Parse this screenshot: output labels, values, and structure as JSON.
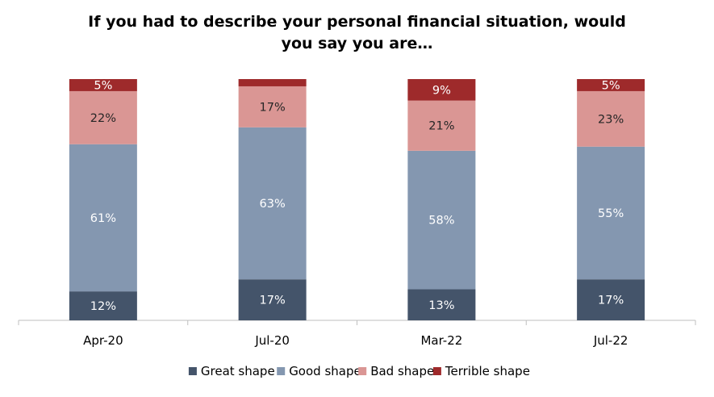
{
  "chart_data": {
    "type": "bar",
    "stacked": true,
    "title": "If you had to describe your personal financial situation, would you say you are…",
    "categories": [
      "Apr-20",
      "Jul-20",
      "Mar-22",
      "Jul-22"
    ],
    "ylim": [
      0,
      100
    ],
    "grid": false,
    "legend_position": "bottom",
    "series": [
      {
        "name": "Great shape",
        "color": "#44546a",
        "values": [
          12,
          17,
          13,
          17
        ],
        "labels": [
          "12%",
          "17%",
          "13%",
          "17%"
        ]
      },
      {
        "name": "Good shape",
        "color": "#8497b0",
        "values": [
          61,
          63,
          58,
          55
        ],
        "labels": [
          "61%",
          "63%",
          "58%",
          "55%"
        ]
      },
      {
        "name": "Bad shape",
        "color": "#da9694",
        "values": [
          22,
          17,
          21,
          23
        ],
        "labels": [
          "22%",
          "17%",
          "21%",
          "23%"
        ]
      },
      {
        "name": "Terrible shape",
        "color": "#9e2a2b",
        "values": [
          5,
          3,
          9,
          5
        ],
        "labels": [
          "5%",
          "",
          "9%",
          "5%"
        ]
      }
    ]
  }
}
